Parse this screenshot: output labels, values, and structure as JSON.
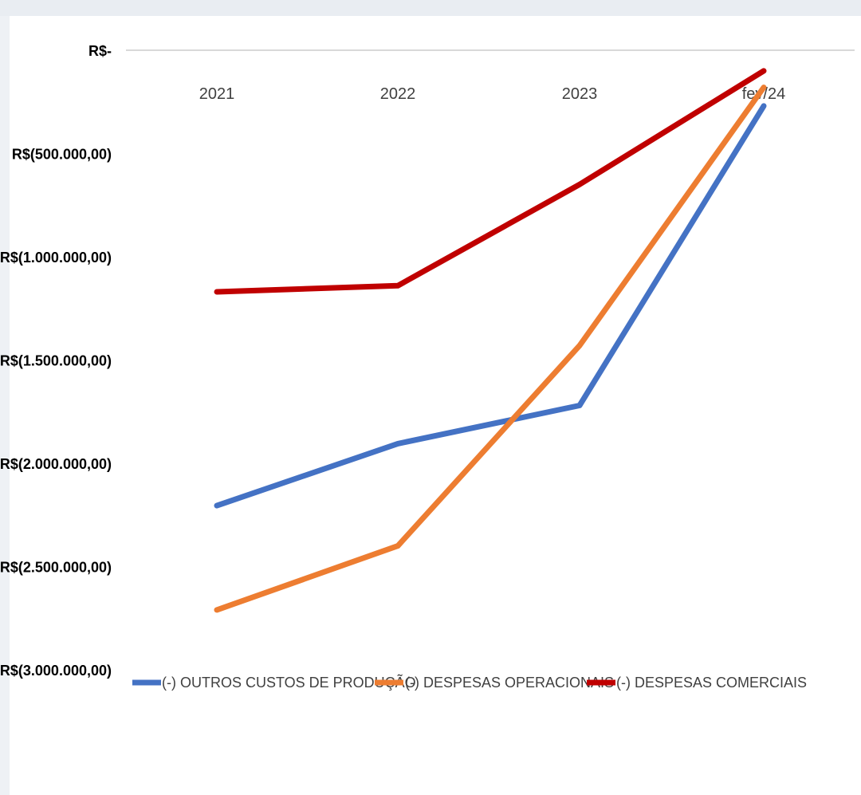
{
  "chart_data": {
    "type": "line",
    "title": "",
    "xlabel": "",
    "ylabel": "",
    "categories": [
      "2021",
      "2022",
      "2023",
      "fev/24"
    ],
    "ylim": [
      -3000000,
      0
    ],
    "y_ticks": [
      0,
      -500000,
      -1000000,
      -1500000,
      -2000000,
      -2500000,
      -3000000
    ],
    "y_tick_labels": [
      "R$-",
      "R$(500.000,00)",
      "R$(1.000.000,00)",
      "R$(1.500.000,00)",
      "R$(2.000.000,00)",
      "R$(2.500.000,00)",
      "R$(3.000.000,00)"
    ],
    "grid": false,
    "legend_position": "bottom",
    "series": [
      {
        "name": "(-) OUTROS CUSTOS DE PRODUÇÃO",
        "color": "#4472c4",
        "values": [
          -2205000,
          -1905000,
          -1720000,
          -270000
        ]
      },
      {
        "name": "(-) DESPESAS OPERACIONAIS",
        "color": "#ed7d31",
        "values": [
          -2710000,
          -2400000,
          -1430000,
          -180000
        ]
      },
      {
        "name": "(-) DESPESAS COMERCIAIS",
        "color": "#c00000",
        "values": [
          -1170000,
          -1140000,
          -650000,
          -100000
        ]
      }
    ]
  }
}
